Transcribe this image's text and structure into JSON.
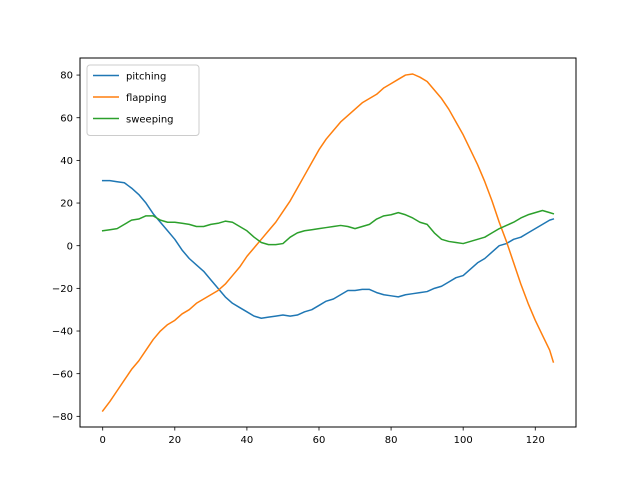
{
  "chart_data": {
    "type": "line",
    "title": "",
    "xlabel": "",
    "ylabel": "",
    "xlim": [
      -6.3,
      131.3
    ],
    "ylim": [
      -85,
      88
    ],
    "x_ticks": [
      0,
      20,
      40,
      60,
      80,
      100,
      120
    ],
    "y_ticks": [
      -80,
      -60,
      -40,
      -20,
      0,
      20,
      40,
      60,
      80
    ],
    "x_tick_labels": [
      "0",
      "20",
      "40",
      "60",
      "80",
      "100",
      "120"
    ],
    "y_tick_labels": [
      "−80",
      "−60",
      "−40",
      "−20",
      "0",
      "20",
      "40",
      "60",
      "80"
    ],
    "grid": false,
    "legend_position": "upper-left",
    "series": [
      {
        "name": "pitching",
        "color": "#1f77b4",
        "points": [
          [
            0,
            30.5
          ],
          [
            2,
            30.5
          ],
          [
            4,
            30
          ],
          [
            6,
            29.5
          ],
          [
            8,
            27
          ],
          [
            10,
            24
          ],
          [
            12,
            20
          ],
          [
            14,
            15
          ],
          [
            16,
            11
          ],
          [
            18,
            7
          ],
          [
            20,
            3
          ],
          [
            22,
            -2
          ],
          [
            24,
            -6
          ],
          [
            26,
            -9
          ],
          [
            28,
            -12
          ],
          [
            30,
            -16
          ],
          [
            32,
            -20
          ],
          [
            34,
            -24
          ],
          [
            36,
            -27
          ],
          [
            38,
            -29
          ],
          [
            40,
            -31
          ],
          [
            42,
            -33
          ],
          [
            44,
            -34
          ],
          [
            46,
            -33.5
          ],
          [
            48,
            -33
          ],
          [
            50,
            -32.5
          ],
          [
            52,
            -33
          ],
          [
            54,
            -32.5
          ],
          [
            56,
            -31
          ],
          [
            58,
            -30
          ],
          [
            60,
            -28
          ],
          [
            62,
            -26
          ],
          [
            64,
            -25
          ],
          [
            66,
            -23
          ],
          [
            68,
            -21
          ],
          [
            70,
            -21
          ],
          [
            72,
            -20.5
          ],
          [
            74,
            -20.5
          ],
          [
            76,
            -22
          ],
          [
            78,
            -23
          ],
          [
            80,
            -23.5
          ],
          [
            82,
            -24
          ],
          [
            84,
            -23
          ],
          [
            86,
            -22.5
          ],
          [
            88,
            -22
          ],
          [
            90,
            -21.5
          ],
          [
            92,
            -20
          ],
          [
            94,
            -19
          ],
          [
            96,
            -17
          ],
          [
            98,
            -15
          ],
          [
            100,
            -14
          ],
          [
            102,
            -11
          ],
          [
            104,
            -8
          ],
          [
            106,
            -6
          ],
          [
            108,
            -3
          ],
          [
            110,
            0
          ],
          [
            112,
            1
          ],
          [
            114,
            3
          ],
          [
            116,
            4
          ],
          [
            118,
            6
          ],
          [
            120,
            8
          ],
          [
            122,
            10
          ],
          [
            124,
            12
          ],
          [
            125,
            12.5
          ]
        ]
      },
      {
        "name": "flapping",
        "color": "#ff7f0e",
        "points": [
          [
            0,
            -77.5
          ],
          [
            2,
            -73
          ],
          [
            4,
            -68
          ],
          [
            6,
            -63
          ],
          [
            8,
            -58
          ],
          [
            10,
            -54
          ],
          [
            12,
            -49
          ],
          [
            14,
            -44
          ],
          [
            16,
            -40
          ],
          [
            18,
            -37
          ],
          [
            20,
            -35
          ],
          [
            22,
            -32
          ],
          [
            24,
            -30
          ],
          [
            26,
            -27
          ],
          [
            28,
            -25
          ],
          [
            30,
            -23
          ],
          [
            32,
            -21
          ],
          [
            34,
            -18
          ],
          [
            36,
            -14
          ],
          [
            38,
            -10
          ],
          [
            40,
            -5
          ],
          [
            42,
            -1
          ],
          [
            44,
            3
          ],
          [
            46,
            7
          ],
          [
            48,
            11
          ],
          [
            50,
            16
          ],
          [
            52,
            21
          ],
          [
            54,
            27
          ],
          [
            56,
            33
          ],
          [
            58,
            39
          ],
          [
            60,
            45
          ],
          [
            62,
            50
          ],
          [
            64,
            54
          ],
          [
            66,
            58
          ],
          [
            68,
            61
          ],
          [
            70,
            64
          ],
          [
            72,
            67
          ],
          [
            74,
            69
          ],
          [
            76,
            71
          ],
          [
            78,
            74
          ],
          [
            80,
            76
          ],
          [
            82,
            78
          ],
          [
            84,
            80
          ],
          [
            86,
            80.5
          ],
          [
            88,
            79
          ],
          [
            90,
            77
          ],
          [
            92,
            73
          ],
          [
            94,
            69
          ],
          [
            96,
            64
          ],
          [
            98,
            58
          ],
          [
            100,
            52
          ],
          [
            102,
            45
          ],
          [
            104,
            38
          ],
          [
            106,
            30
          ],
          [
            108,
            21
          ],
          [
            110,
            11
          ],
          [
            112,
            2
          ],
          [
            114,
            -8
          ],
          [
            116,
            -18
          ],
          [
            118,
            -27
          ],
          [
            120,
            -35
          ],
          [
            122,
            -42
          ],
          [
            124,
            -49
          ],
          [
            125,
            -54.5
          ]
        ]
      },
      {
        "name": "sweeping",
        "color": "#2ca02c",
        "points": [
          [
            0,
            7
          ],
          [
            2,
            7.5
          ],
          [
            4,
            8
          ],
          [
            6,
            10
          ],
          [
            8,
            12
          ],
          [
            10,
            12.5
          ],
          [
            12,
            14
          ],
          [
            14,
            14
          ],
          [
            16,
            12
          ],
          [
            18,
            11
          ],
          [
            20,
            11
          ],
          [
            22,
            10.5
          ],
          [
            24,
            10
          ],
          [
            26,
            9
          ],
          [
            28,
            9
          ],
          [
            30,
            10
          ],
          [
            32,
            10.5
          ],
          [
            34,
            11.5
          ],
          [
            36,
            11
          ],
          [
            38,
            9
          ],
          [
            40,
            7
          ],
          [
            42,
            4
          ],
          [
            44,
            1.5
          ],
          [
            46,
            0.5
          ],
          [
            48,
            0.5
          ],
          [
            50,
            1
          ],
          [
            52,
            4
          ],
          [
            54,
            6
          ],
          [
            56,
            7
          ],
          [
            58,
            7.5
          ],
          [
            60,
            8
          ],
          [
            62,
            8.5
          ],
          [
            64,
            9
          ],
          [
            66,
            9.5
          ],
          [
            68,
            9
          ],
          [
            70,
            8
          ],
          [
            72,
            9
          ],
          [
            74,
            10
          ],
          [
            76,
            12.5
          ],
          [
            78,
            14
          ],
          [
            80,
            14.5
          ],
          [
            82,
            15.5
          ],
          [
            84,
            14.5
          ],
          [
            86,
            13
          ],
          [
            88,
            11
          ],
          [
            90,
            10
          ],
          [
            92,
            6
          ],
          [
            94,
            3
          ],
          [
            96,
            2
          ],
          [
            98,
            1.5
          ],
          [
            100,
            1
          ],
          [
            102,
            2
          ],
          [
            104,
            3
          ],
          [
            106,
            4
          ],
          [
            108,
            6
          ],
          [
            110,
            8
          ],
          [
            112,
            9.5
          ],
          [
            114,
            11
          ],
          [
            116,
            13
          ],
          [
            118,
            14.5
          ],
          [
            120,
            15.5
          ],
          [
            122,
            16.5
          ],
          [
            124,
            15.5
          ],
          [
            125,
            15
          ]
        ]
      }
    ]
  }
}
